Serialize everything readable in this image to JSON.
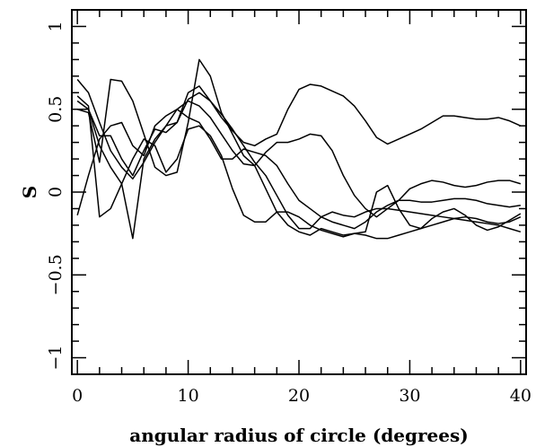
{
  "chart_data": {
    "type": "line",
    "xlabel": "angular radius of circle (degrees)",
    "ylabel": "S",
    "xlim": [
      -0.5,
      40.5
    ],
    "ylim": [
      -1.1,
      1.1
    ],
    "x_ticks": [
      0,
      10,
      20,
      30,
      40
    ],
    "y_ticks": [
      -1,
      -0.5,
      0,
      0.5,
      1
    ],
    "x_tick_labels": [
      "0",
      "10",
      "20",
      "30",
      "40"
    ],
    "y_tick_labels": [
      "−1",
      "−0.5",
      "0",
      "0.5",
      "1"
    ],
    "grid": false,
    "legend": "none",
    "series": [
      {
        "x": [
          0,
          1,
          2,
          3,
          4,
          5,
          6,
          7,
          8,
          9,
          10,
          11,
          12,
          13,
          14,
          15,
          16,
          17,
          18,
          19,
          20,
          21,
          22,
          23,
          24,
          25,
          26,
          27,
          28,
          29,
          30,
          31,
          32,
          33,
          34,
          35,
          36,
          37,
          38,
          39,
          40
        ],
        "values": [
          0.5,
          0.5,
          0.34,
          0.34,
          0.2,
          0.1,
          0.25,
          0.38,
          0.36,
          0.42,
          0.6,
          0.64,
          0.55,
          0.45,
          0.37,
          0.3,
          0.28,
          0.32,
          0.35,
          0.5,
          0.62,
          0.65,
          0.64,
          0.61,
          0.58,
          0.52,
          0.43,
          0.33,
          0.29,
          0.32,
          0.35,
          0.38,
          0.42,
          0.46,
          0.46,
          0.45,
          0.44,
          0.44,
          0.45,
          0.43,
          0.4
        ]
      },
      {
        "x": [
          0,
          1,
          2,
          3,
          4,
          5,
          6,
          7,
          8,
          9,
          10,
          11,
          12,
          13,
          14,
          15,
          16,
          17,
          18,
          19,
          20,
          21,
          22,
          23,
          24,
          25,
          26,
          27,
          28,
          29,
          30,
          31,
          32,
          33,
          34,
          35,
          36,
          37,
          38,
          39,
          40
        ],
        "values": [
          0.68,
          0.6,
          0.42,
          0.25,
          0.15,
          0.08,
          0.18,
          0.3,
          0.4,
          0.5,
          0.55,
          0.52,
          0.45,
          0.35,
          0.25,
          0.17,
          0.16,
          0.24,
          0.3,
          0.3,
          0.32,
          0.35,
          0.34,
          0.25,
          0.1,
          -0.02,
          -0.1,
          -0.15,
          -0.1,
          -0.05,
          0.02,
          0.05,
          0.07,
          0.06,
          0.04,
          0.03,
          0.04,
          0.06,
          0.07,
          0.07,
          0.05
        ]
      },
      {
        "x": [
          0,
          1,
          2,
          3,
          4,
          5,
          6,
          7,
          8,
          9,
          10,
          11,
          12,
          13,
          14,
          15,
          16,
          17,
          18,
          19,
          20,
          21,
          22,
          23,
          24,
          25,
          26,
          27,
          28,
          29,
          30,
          31,
          32,
          33,
          34,
          35,
          36,
          37,
          38,
          39,
          40
        ],
        "values": [
          -0.14,
          0.1,
          0.32,
          0.4,
          0.42,
          0.28,
          0.22,
          0.4,
          0.46,
          0.5,
          0.45,
          0.42,
          0.32,
          0.2,
          0.2,
          0.26,
          0.24,
          0.22,
          0.16,
          0.05,
          -0.05,
          -0.1,
          -0.15,
          -0.18,
          -0.2,
          -0.22,
          -0.18,
          -0.12,
          -0.08,
          -0.05,
          -0.05,
          -0.06,
          -0.06,
          -0.05,
          -0.04,
          -0.04,
          -0.05,
          -0.07,
          -0.08,
          -0.09,
          -0.08
        ]
      },
      {
        "x": [
          0,
          1,
          2,
          3,
          4,
          5,
          6,
          7,
          8,
          9,
          10,
          11,
          12,
          13,
          14,
          15,
          16,
          17,
          18,
          19,
          20,
          21,
          22,
          23,
          24,
          25,
          26,
          27,
          28,
          29,
          30,
          31,
          32,
          33,
          34,
          35,
          36,
          37,
          38,
          39,
          40
        ],
        "values": [
          0.55,
          0.5,
          0.28,
          0.15,
          0.05,
          -0.28,
          0.2,
          0.32,
          0.4,
          0.42,
          0.56,
          0.6,
          0.55,
          0.47,
          0.38,
          0.28,
          0.18,
          0.1,
          -0.02,
          -0.14,
          -0.22,
          -0.22,
          -0.15,
          -0.12,
          -0.14,
          -0.15,
          -0.12,
          -0.1,
          -0.1,
          -0.11,
          -0.12,
          -0.13,
          -0.14,
          -0.15,
          -0.16,
          -0.17,
          -0.18,
          -0.19,
          -0.2,
          -0.22,
          -0.24
        ]
      },
      {
        "x": [
          0,
          1,
          2,
          3,
          4,
          5,
          6,
          7,
          8,
          9,
          10,
          11,
          12,
          13,
          14,
          15,
          16,
          17,
          18,
          19,
          20,
          21,
          22,
          23,
          24,
          25,
          26,
          27,
          28,
          29,
          30,
          31,
          32,
          33,
          34,
          35,
          36,
          37,
          38,
          39,
          40
        ],
        "values": [
          0.58,
          0.52,
          -0.15,
          -0.1,
          0.05,
          0.2,
          0.32,
          0.28,
          0.12,
          0.2,
          0.38,
          0.4,
          0.34,
          0.22,
          0.02,
          -0.14,
          -0.18,
          -0.18,
          -0.12,
          -0.12,
          -0.15,
          -0.2,
          -0.23,
          -0.25,
          -0.27,
          -0.25,
          -0.24,
          0.0,
          0.04,
          -0.1,
          -0.2,
          -0.22,
          -0.16,
          -0.12,
          -0.1,
          -0.14,
          -0.2,
          -0.23,
          -0.21,
          -0.17,
          -0.13
        ]
      },
      {
        "x": [
          0,
          1,
          2,
          3,
          4,
          5,
          6,
          7,
          8,
          9,
          10,
          11,
          12,
          13,
          14,
          15,
          16,
          17,
          18,
          19,
          20,
          21,
          22,
          23,
          24,
          25,
          26,
          27,
          28,
          29,
          30,
          31,
          32,
          33,
          34,
          35,
          36,
          37,
          38,
          39,
          40
        ],
        "values": [
          0.5,
          0.48,
          0.18,
          0.68,
          0.67,
          0.55,
          0.35,
          0.15,
          0.1,
          0.12,
          0.42,
          0.8,
          0.7,
          0.48,
          0.35,
          0.22,
          0.16,
          0.02,
          -0.12,
          -0.2,
          -0.24,
          -0.26,
          -0.22,
          -0.24,
          -0.26,
          -0.25,
          -0.26,
          -0.28,
          -0.28,
          -0.26,
          -0.24,
          -0.22,
          -0.2,
          -0.18,
          -0.16,
          -0.15,
          -0.16,
          -0.18,
          -0.19,
          -0.18,
          -0.15
        ]
      }
    ]
  }
}
